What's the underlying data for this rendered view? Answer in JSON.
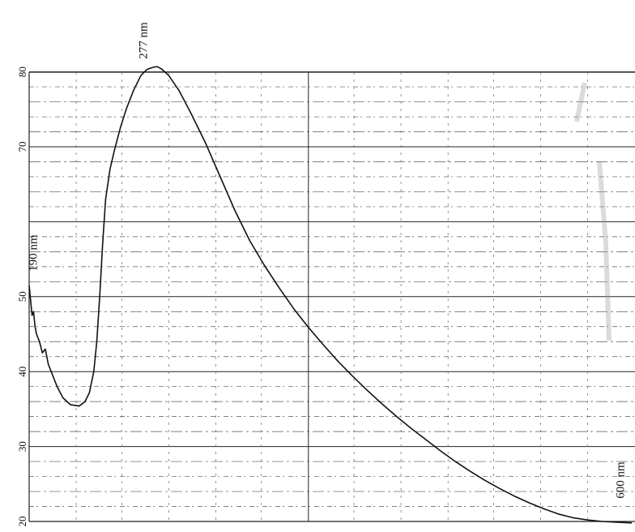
{
  "chart_data": {
    "type": "line",
    "title": "",
    "xlabel": "",
    "ylabel": "",
    "annotations": {
      "peak": "277 nm",
      "start": "190 nm",
      "end": "600 nm"
    },
    "y_ticks": [
      {
        "value": 20,
        "label": "20"
      },
      {
        "value": 30,
        "label": "30"
      },
      {
        "value": 40,
        "label": "40"
      },
      {
        "value": 50,
        "label": "50"
      },
      {
        "value": 70,
        "label": "70"
      },
      {
        "value": 80,
        "label": "80"
      }
    ],
    "ylim": [
      20,
      80
    ],
    "xlim": [
      190,
      600
    ],
    "grid": true,
    "series": [
      {
        "values_xy": [
          [
            190,
            51.5
          ],
          [
            191,
            49.5
          ],
          [
            192,
            47.5
          ],
          [
            193,
            48
          ],
          [
            194,
            46
          ],
          [
            195,
            45
          ],
          [
            197,
            44
          ],
          [
            199,
            42.5
          ],
          [
            201,
            43
          ],
          [
            203,
            41
          ],
          [
            206,
            39.5
          ],
          [
            209,
            38
          ],
          [
            213,
            36.5
          ],
          [
            218,
            35.6
          ],
          [
            224,
            35.4
          ],
          [
            228,
            36
          ],
          [
            231,
            37.2
          ],
          [
            234,
            40
          ],
          [
            236,
            44
          ],
          [
            238,
            50
          ],
          [
            240,
            57
          ],
          [
            242,
            63
          ],
          [
            245,
            67
          ],
          [
            248,
            69.5
          ],
          [
            252,
            72.5
          ],
          [
            256,
            75
          ],
          [
            261,
            77.5
          ],
          [
            266,
            79.5
          ],
          [
            270,
            80.3
          ],
          [
            274,
            80.6
          ],
          [
            277,
            80.7
          ],
          [
            280,
            80.4
          ],
          [
            285,
            79.5
          ],
          [
            292,
            77.5
          ],
          [
            300,
            74.5
          ],
          [
            310,
            70.5
          ],
          [
            320,
            66
          ],
          [
            330,
            61.5
          ],
          [
            340,
            57.5
          ],
          [
            350,
            54.2
          ],
          [
            360,
            51.2
          ],
          [
            370,
            48.4
          ],
          [
            380,
            45.9
          ],
          [
            390,
            43.6
          ],
          [
            400,
            41.4
          ],
          [
            410,
            39.4
          ],
          [
            420,
            37.5
          ],
          [
            430,
            35.7
          ],
          [
            440,
            34
          ],
          [
            450,
            32.4
          ],
          [
            460,
            30.9
          ],
          [
            470,
            29.4
          ],
          [
            480,
            28
          ],
          [
            490,
            26.7
          ],
          [
            500,
            25.5
          ],
          [
            510,
            24.4
          ],
          [
            520,
            23.4
          ],
          [
            530,
            22.5
          ],
          [
            540,
            21.7
          ],
          [
            550,
            21
          ],
          [
            560,
            20.5
          ],
          [
            570,
            20.2
          ],
          [
            580,
            20
          ],
          [
            590,
            19.9
          ],
          [
            600,
            19.8
          ]
        ]
      }
    ]
  }
}
